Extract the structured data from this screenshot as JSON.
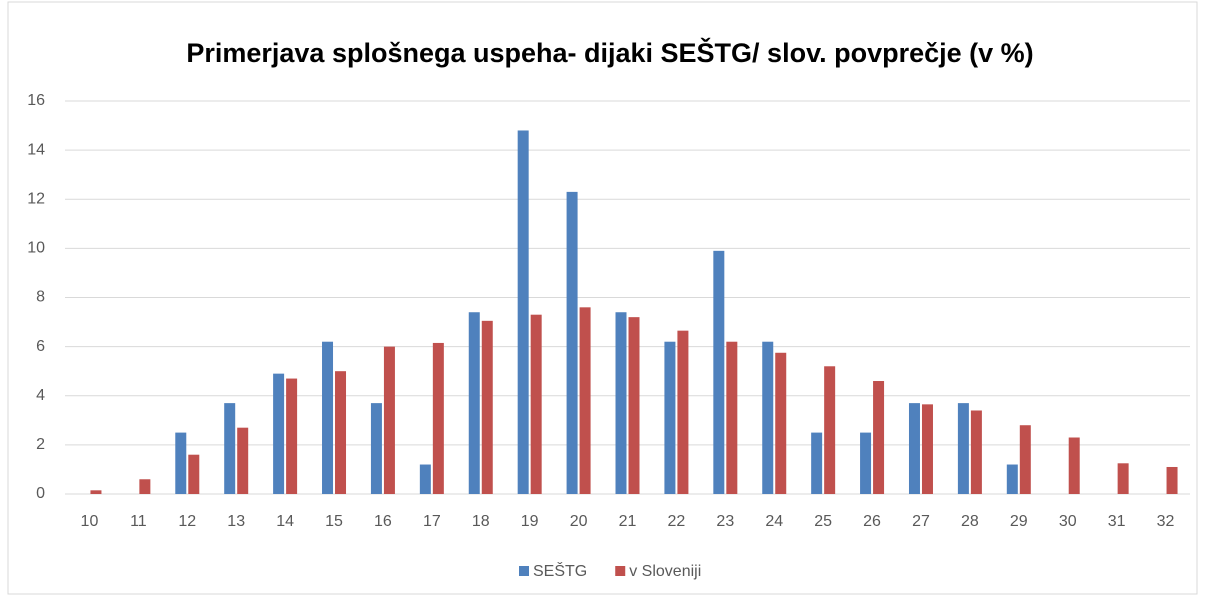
{
  "chart_data": {
    "type": "bar",
    "title": "Primerjava splošnega uspeha- dijaki SEŠTG/ slov. povprečje (v %)",
    "categories": [
      "10",
      "11",
      "12",
      "13",
      "14",
      "15",
      "16",
      "17",
      "18",
      "19",
      "20",
      "21",
      "22",
      "23",
      "24",
      "25",
      "26",
      "27",
      "28",
      "29",
      "30",
      "31",
      "32"
    ],
    "series": [
      {
        "name": "SEŠTG",
        "color": "#4f81bd",
        "values": [
          0,
          0,
          2.5,
          3.7,
          4.9,
          6.2,
          3.7,
          1.2,
          7.4,
          14.8,
          12.3,
          7.4,
          6.2,
          9.9,
          6.2,
          2.5,
          2.5,
          3.7,
          3.7,
          1.2,
          0,
          0,
          0
        ]
      },
      {
        "name": "v Sloveniji",
        "color": "#c0504d",
        "values": [
          0.15,
          0.6,
          1.6,
          2.7,
          4.7,
          5.0,
          6.0,
          6.15,
          7.05,
          7.3,
          7.6,
          7.2,
          6.65,
          6.2,
          5.75,
          5.2,
          4.6,
          3.65,
          3.4,
          2.8,
          2.3,
          1.25,
          1.1
        ]
      }
    ],
    "ylim": [
      0,
      16
    ],
    "yticks": [
      0,
      2,
      4,
      6,
      8,
      10,
      12,
      14,
      16
    ],
    "grid": true,
    "legend": "bottom"
  }
}
